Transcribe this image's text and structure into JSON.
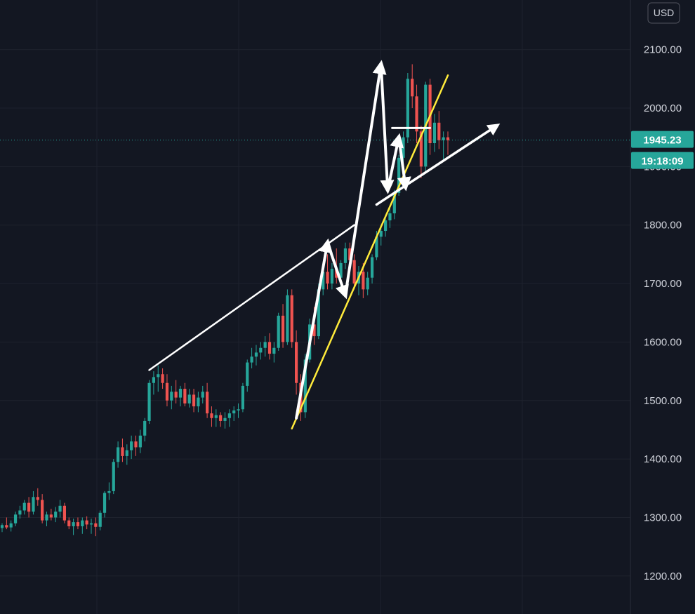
{
  "currency": "USD",
  "last_price": "1945.23",
  "countdown": "19:18:09",
  "colors": {
    "background": "#131722",
    "grid": "#1e222d",
    "up": "#26a69a",
    "down": "#ef5350",
    "trendline_white": "#ffffff",
    "trendline_yellow": "#ffeb3b",
    "price_tag": "#26a69a"
  },
  "chart_data": {
    "type": "candlestick",
    "y_axis": {
      "ticks": [
        "2100.00",
        "2000.00",
        "1900.00",
        "1800.00",
        "1700.00",
        "1600.00",
        "1500.00",
        "1400.00",
        "1300.00",
        "1200.00"
      ],
      "ylim": [
        1140,
        2150
      ],
      "side": "right"
    },
    "last_price": 1945.23,
    "grid": true,
    "candles": [
      [
        1282,
        1290,
        1275,
        1287
      ],
      [
        1287,
        1300,
        1280,
        1283
      ],
      [
        1283,
        1295,
        1276,
        1290
      ],
      [
        1290,
        1310,
        1285,
        1305
      ],
      [
        1305,
        1320,
        1298,
        1312
      ],
      [
        1312,
        1330,
        1305,
        1325
      ],
      [
        1325,
        1335,
        1300,
        1310
      ],
      [
        1310,
        1345,
        1305,
        1335
      ],
      [
        1335,
        1350,
        1320,
        1330
      ],
      [
        1330,
        1340,
        1290,
        1295
      ],
      [
        1295,
        1310,
        1285,
        1305
      ],
      [
        1305,
        1315,
        1295,
        1300
      ],
      [
        1300,
        1318,
        1292,
        1310
      ],
      [
        1310,
        1330,
        1300,
        1320
      ],
      [
        1320,
        1325,
        1290,
        1295
      ],
      [
        1295,
        1300,
        1280,
        1285
      ],
      [
        1285,
        1298,
        1270,
        1292
      ],
      [
        1292,
        1300,
        1280,
        1285
      ],
      [
        1285,
        1300,
        1272,
        1295
      ],
      [
        1295,
        1302,
        1280,
        1288
      ],
      [
        1288,
        1298,
        1272,
        1290
      ],
      [
        1290,
        1300,
        1268,
        1284
      ],
      [
        1284,
        1312,
        1278,
        1308
      ],
      [
        1308,
        1345,
        1300,
        1342
      ],
      [
        1342,
        1360,
        1330,
        1345
      ],
      [
        1345,
        1400,
        1340,
        1395
      ],
      [
        1395,
        1430,
        1385,
        1420
      ],
      [
        1420,
        1435,
        1395,
        1405
      ],
      [
        1405,
        1425,
        1390,
        1415
      ],
      [
        1415,
        1440,
        1400,
        1430
      ],
      [
        1430,
        1440,
        1405,
        1420
      ],
      [
        1420,
        1450,
        1410,
        1440
      ],
      [
        1440,
        1470,
        1430,
        1465
      ],
      [
        1465,
        1535,
        1460,
        1530
      ],
      [
        1530,
        1550,
        1510,
        1540
      ],
      [
        1540,
        1560,
        1515,
        1545
      ],
      [
        1545,
        1555,
        1520,
        1530
      ],
      [
        1530,
        1545,
        1490,
        1500
      ],
      [
        1500,
        1525,
        1485,
        1515
      ],
      [
        1515,
        1535,
        1495,
        1505
      ],
      [
        1505,
        1525,
        1490,
        1520
      ],
      [
        1520,
        1530,
        1490,
        1495
      ],
      [
        1495,
        1520,
        1488,
        1510
      ],
      [
        1510,
        1520,
        1480,
        1490
      ],
      [
        1490,
        1515,
        1480,
        1505
      ],
      [
        1505,
        1525,
        1495,
        1515
      ],
      [
        1515,
        1530,
        1470,
        1478
      ],
      [
        1478,
        1490,
        1455,
        1470
      ],
      [
        1470,
        1485,
        1455,
        1475
      ],
      [
        1475,
        1480,
        1455,
        1465
      ],
      [
        1465,
        1480,
        1452,
        1470
      ],
      [
        1470,
        1485,
        1455,
        1478
      ],
      [
        1478,
        1490,
        1465,
        1483
      ],
      [
        1483,
        1495,
        1470,
        1485
      ],
      [
        1485,
        1530,
        1480,
        1525
      ],
      [
        1525,
        1570,
        1515,
        1565
      ],
      [
        1565,
        1590,
        1555,
        1575
      ],
      [
        1575,
        1595,
        1560,
        1582
      ],
      [
        1582,
        1600,
        1570,
        1590
      ],
      [
        1590,
        1610,
        1575,
        1600
      ],
      [
        1600,
        1615,
        1570,
        1580
      ],
      [
        1580,
        1600,
        1565,
        1590
      ],
      [
        1590,
        1650,
        1585,
        1645
      ],
      [
        1645,
        1665,
        1590,
        1600
      ],
      [
        1600,
        1690,
        1595,
        1680
      ],
      [
        1680,
        1690,
        1590,
        1600
      ],
      [
        1600,
        1620,
        1510,
        1530
      ],
      [
        1530,
        1545,
        1465,
        1480
      ],
      [
        1480,
        1580,
        1470,
        1570
      ],
      [
        1570,
        1640,
        1565,
        1630
      ],
      [
        1630,
        1660,
        1595,
        1610
      ],
      [
        1610,
        1700,
        1605,
        1690
      ],
      [
        1690,
        1730,
        1680,
        1720
      ],
      [
        1720,
        1750,
        1690,
        1700
      ],
      [
        1700,
        1735,
        1690,
        1725
      ],
      [
        1725,
        1760,
        1700,
        1710
      ],
      [
        1710,
        1740,
        1695,
        1735
      ],
      [
        1735,
        1770,
        1725,
        1760
      ],
      [
        1760,
        1770,
        1730,
        1740
      ],
      [
        1740,
        1750,
        1690,
        1700
      ],
      [
        1700,
        1730,
        1680,
        1720
      ],
      [
        1720,
        1735,
        1675,
        1690
      ],
      [
        1690,
        1720,
        1680,
        1710
      ],
      [
        1710,
        1750,
        1700,
        1745
      ],
      [
        1745,
        1790,
        1740,
        1780
      ],
      [
        1780,
        1800,
        1765,
        1790
      ],
      [
        1790,
        1815,
        1780,
        1808
      ],
      [
        1808,
        1830,
        1795,
        1820
      ],
      [
        1820,
        1860,
        1810,
        1855
      ],
      [
        1855,
        1920,
        1850,
        1915
      ],
      [
        1915,
        1960,
        1890,
        1950
      ],
      [
        1950,
        2060,
        1940,
        2050
      ],
      [
        2050,
        2075,
        2000,
        2020
      ],
      [
        2020,
        2040,
        1940,
        1960
      ],
      [
        1960,
        1970,
        1880,
        1900
      ],
      [
        1900,
        2045,
        1890,
        2040
      ],
      [
        2040,
        2050,
        1920,
        1940
      ],
      [
        1940,
        1990,
        1925,
        1975
      ],
      [
        1975,
        1995,
        1930,
        1945
      ],
      [
        1945,
        1960,
        1910,
        1950
      ],
      [
        1950,
        1960,
        1920,
        1945
      ]
    ],
    "annotations": {
      "lines": [
        {
          "color": "white",
          "width": 2.5,
          "p1": [
            33,
            1552
          ],
          "p2": [
            79,
            1800
          ]
        },
        {
          "color": "yellow",
          "width": 2.5,
          "p1": [
            65,
            1452
          ],
          "p2": [
            100,
            2056
          ]
        },
        {
          "color": "white",
          "width": 3.5,
          "p1": [
            84,
            1835
          ],
          "p2": [
            111,
            1970
          ],
          "arrow": true
        },
        {
          "color": "white",
          "width": 4,
          "p1": [
            66,
            1470
          ],
          "p2": [
            73,
            1770
          ],
          "arrow": true
        },
        {
          "color": "white",
          "width": 4,
          "p1": [
            73,
            1770
          ],
          "p2": [
            77,
            1680
          ],
          "arrow": true
        },
        {
          "color": "white",
          "width": 4,
          "p1": [
            77,
            1680
          ],
          "p2": [
            85,
            2075
          ],
          "arrow": true
        },
        {
          "color": "white",
          "width": 4,
          "p1": [
            85,
            2075
          ],
          "p2": [
            86.5,
            1860
          ],
          "arrow": true
        },
        {
          "color": "white",
          "width": 4,
          "p1": [
            86.5,
            1860
          ],
          "p2": [
            89,
            1950
          ],
          "arrow": true
        },
        {
          "color": "white",
          "width": 4,
          "p1": [
            89,
            1950
          ],
          "p2": [
            90.5,
            1865
          ],
          "arrow": true
        },
        {
          "color": "white",
          "width": 3,
          "p1": [
            87.5,
            1966
          ],
          "p2": [
            96,
            1966
          ]
        }
      ]
    }
  }
}
